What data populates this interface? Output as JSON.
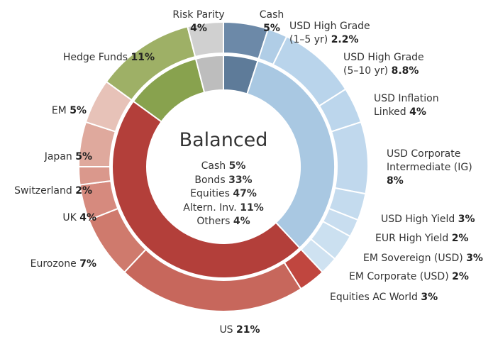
{
  "chart_data": {
    "type": "sunburst",
    "title": "Balanced",
    "inner": {
      "categories": [
        "Cash",
        "Bonds",
        "Equities",
        "Altern. Inv.",
        "Others"
      ],
      "values": [
        5,
        33,
        47,
        11,
        4
      ],
      "value_labels": [
        "5%",
        "33%",
        "47%",
        "11%",
        "4%"
      ],
      "colors": [
        "#5e7b99",
        "#a9c8e2",
        "#b33f3a",
        "#88a24e",
        "#bdbdbd"
      ]
    },
    "outer": {
      "categories": [
        "Cash",
        "USD High Grade (1–5 yr)",
        "USD High Grade (5–10 yr)",
        "USD Inflation Linked",
        "USD Corporate Intermediate (IG)",
        "USD High Yield",
        "EUR High Yield",
        "EM Sovereign (USD)",
        "EM Corporate (USD)",
        "Equities AC World",
        "US",
        "Eurozone",
        "UK",
        "Switzerland",
        "Japan",
        "EM",
        "Hedge Funds",
        "Risk Parity"
      ],
      "values": [
        5,
        2.2,
        8.8,
        4,
        8,
        3,
        2,
        3,
        2,
        3,
        21,
        7,
        4,
        2,
        5,
        5,
        11,
        4
      ],
      "value_labels": [
        "5%",
        "2.2%",
        "8.8%",
        "4%",
        "8%",
        "3%",
        "2%",
        "3%",
        "2%",
        "3%",
        "21%",
        "7%",
        "4%",
        "2%",
        "5%",
        "5%",
        "11%",
        "4%"
      ],
      "colors": [
        "#6c89a8",
        "#b0cde6",
        "#b9d4eb",
        "#bcd6ec",
        "#c0d8ed",
        "#c4dbee",
        "#c8ddef",
        "#cbe0f0",
        "#cfe2f1",
        "#c0463f",
        "#c7675c",
        "#cf7a6d",
        "#d68a7e",
        "#da988c",
        "#dfa99d",
        "#e7c2b8",
        "#9eb066",
        "#d0d0d0"
      ]
    }
  }
}
